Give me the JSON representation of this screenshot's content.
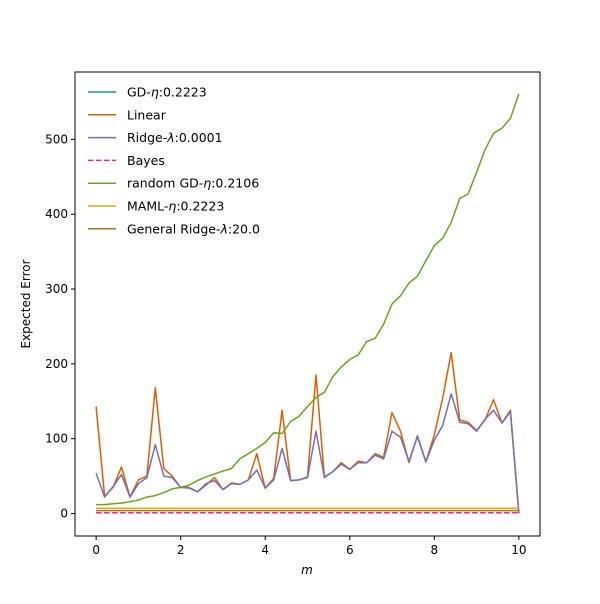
{
  "chart_data": {
    "type": "line",
    "xlabel": "m",
    "ylabel": "Expected Error",
    "xlim": [
      -0.5,
      10.5
    ],
    "ylim": [
      -30,
      590
    ],
    "xticks": [
      0,
      2,
      4,
      6,
      8,
      10
    ],
    "yticks": [
      0,
      100,
      200,
      300,
      400,
      500
    ],
    "grid": false,
    "legend_position": "top-left",
    "x": [
      0,
      0.2,
      0.4,
      0.6,
      0.8,
      1.0,
      1.2,
      1.4,
      1.6,
      1.8,
      2.0,
      2.2,
      2.4,
      2.6,
      2.8,
      3.0,
      3.2,
      3.4,
      3.6,
      3.8,
      4.0,
      4.2,
      4.4,
      4.6,
      4.8,
      5.0,
      5.2,
      5.4,
      5.6,
      5.8,
      6.0,
      6.2,
      6.4,
      6.6,
      6.8,
      7.0,
      7.2,
      7.4,
      7.6,
      7.8,
      8.0,
      8.2,
      8.4,
      8.6,
      8.8,
      9.0,
      9.2,
      9.4,
      9.6,
      9.8,
      10.0
    ],
    "series": [
      {
        "name": "GD-η:0.2223",
        "legend_prefix": "GD-",
        "legend_symbol": "η",
        "legend_suffix": ":0.2223",
        "color": "#1b9e77",
        "dash": "solid",
        "values": [
          7,
          7,
          7,
          7,
          7,
          7,
          7,
          7,
          7,
          7,
          7,
          7,
          7,
          7,
          7,
          7,
          7,
          7,
          7,
          7,
          7,
          7,
          7,
          7,
          7,
          7,
          7,
          7,
          7,
          7,
          7,
          7,
          7,
          7,
          7,
          7,
          7,
          7,
          7,
          7,
          7,
          7,
          7,
          7,
          7,
          7,
          7,
          7,
          7,
          7,
          7
        ]
      },
      {
        "name": "Linear",
        "legend_prefix": "Linear",
        "legend_symbol": "",
        "legend_suffix": "",
        "color": "#d95f02",
        "dash": "solid",
        "values": [
          143,
          23,
          35,
          62,
          22,
          45,
          50,
          168,
          60,
          50,
          35,
          35,
          29,
          38,
          48,
          32,
          41,
          39,
          45,
          80,
          34,
          47,
          138,
          44,
          45,
          49,
          185,
          49,
          56,
          68,
          59,
          70,
          68,
          80,
          75,
          135,
          110,
          68,
          104,
          69,
          105,
          155,
          215,
          125,
          122,
          111,
          125,
          152,
          121,
          138,
          0
        ]
      },
      {
        "name": "Ridge-λ:0.0001",
        "legend_prefix": "Ridge-",
        "legend_symbol": "λ",
        "legend_suffix": ":0.0001",
        "color": "#7570b3",
        "dash": "solid",
        "values": [
          54,
          22,
          36,
          52,
          22,
          40,
          48,
          92,
          50,
          48,
          35,
          34,
          29,
          40,
          44,
          32,
          40,
          39,
          45,
          58,
          34,
          45,
          87,
          44,
          45,
          48,
          110,
          48,
          56,
          66,
          59,
          68,
          68,
          78,
          73,
          110,
          102,
          70,
          103,
          69,
          98,
          118,
          160,
          122,
          120,
          110,
          126,
          138,
          121,
          136,
          0
        ]
      },
      {
        "name": "Bayes",
        "legend_prefix": "Bayes",
        "legend_symbol": "",
        "legend_suffix": "",
        "color": "#e7298a",
        "dash": "dashed",
        "values": [
          1,
          1,
          1,
          1,
          1,
          1,
          1,
          1,
          1,
          1,
          1,
          1,
          1,
          1,
          1,
          1,
          1,
          1,
          1,
          1,
          1,
          1,
          1,
          1,
          1,
          1,
          1,
          1,
          1,
          1,
          1,
          1,
          1,
          1,
          1,
          1,
          1,
          1,
          1,
          1,
          1,
          1,
          1,
          1,
          1,
          1,
          1,
          1,
          1,
          1,
          1
        ]
      },
      {
        "name": "random GD-η:0.2106",
        "legend_prefix": "random GD-",
        "legend_symbol": "η",
        "legend_suffix": ":0.2106",
        "color": "#66a61e",
        "dash": "solid",
        "values": [
          12,
          12,
          13,
          14,
          16,
          18,
          22,
          24,
          28,
          33,
          35,
          38,
          44,
          49,
          53,
          57,
          60,
          73,
          80,
          87,
          95,
          108,
          107,
          123,
          130,
          143,
          155,
          162,
          183,
          196,
          206,
          212,
          230,
          234,
          253,
          280,
          291,
          308,
          317,
          338,
          358,
          368,
          389,
          421,
          427,
          456,
          486,
          508,
          515,
          528,
          561
        ]
      },
      {
        "name": "MAML-η:0.2223",
        "legend_prefix": "MAML-",
        "legend_symbol": "η",
        "legend_suffix": ":0.2223",
        "color": "#e6ab02",
        "dash": "solid",
        "values": [
          7,
          7,
          7,
          7,
          7,
          7,
          7,
          7,
          7,
          7,
          7,
          7,
          7,
          7,
          7,
          7,
          7,
          7,
          7,
          7,
          7,
          7,
          7,
          7,
          7,
          7,
          7,
          7,
          7,
          7,
          7,
          7,
          7,
          7,
          7,
          7,
          7,
          7,
          7,
          7,
          7,
          7,
          7,
          7,
          7,
          7,
          7,
          7,
          7,
          7,
          7
        ]
      },
      {
        "name": "General Ridge-λ:20.0",
        "legend_prefix": "General Ridge-",
        "legend_symbol": "λ",
        "legend_suffix": ":20.0",
        "color": "#a6761d",
        "dash": "solid",
        "values": [
          4,
          4,
          4,
          4,
          4,
          4,
          4,
          4,
          4,
          4,
          4,
          4,
          4,
          4,
          4,
          4,
          4,
          4,
          4,
          4,
          4,
          4,
          4,
          4,
          4,
          4,
          4,
          4,
          4,
          4,
          4,
          4,
          4,
          4,
          4,
          4,
          4,
          4,
          4,
          4,
          4,
          4,
          4,
          4,
          4,
          4,
          4,
          4,
          4,
          4,
          4
        ]
      }
    ]
  }
}
